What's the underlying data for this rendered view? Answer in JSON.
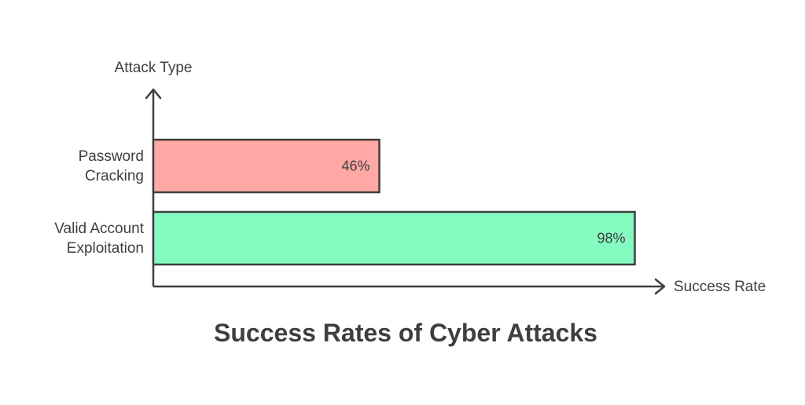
{
  "chart_data": {
    "type": "bar",
    "orientation": "horizontal",
    "title": "Success Rates of Cyber Attacks",
    "xlabel": "Success Rate",
    "ylabel": "Attack Type",
    "categories": [
      [
        "Password",
        "Cracking"
      ],
      [
        "Valid Account",
        "Exploitation"
      ]
    ],
    "values": [
      46,
      98
    ],
    "value_labels": [
      "46%",
      "98%"
    ],
    "colors": [
      "#ffa8a5",
      "#85fbc0"
    ],
    "xlim": [
      0,
      100
    ],
    "grid": false,
    "legend": "none"
  }
}
